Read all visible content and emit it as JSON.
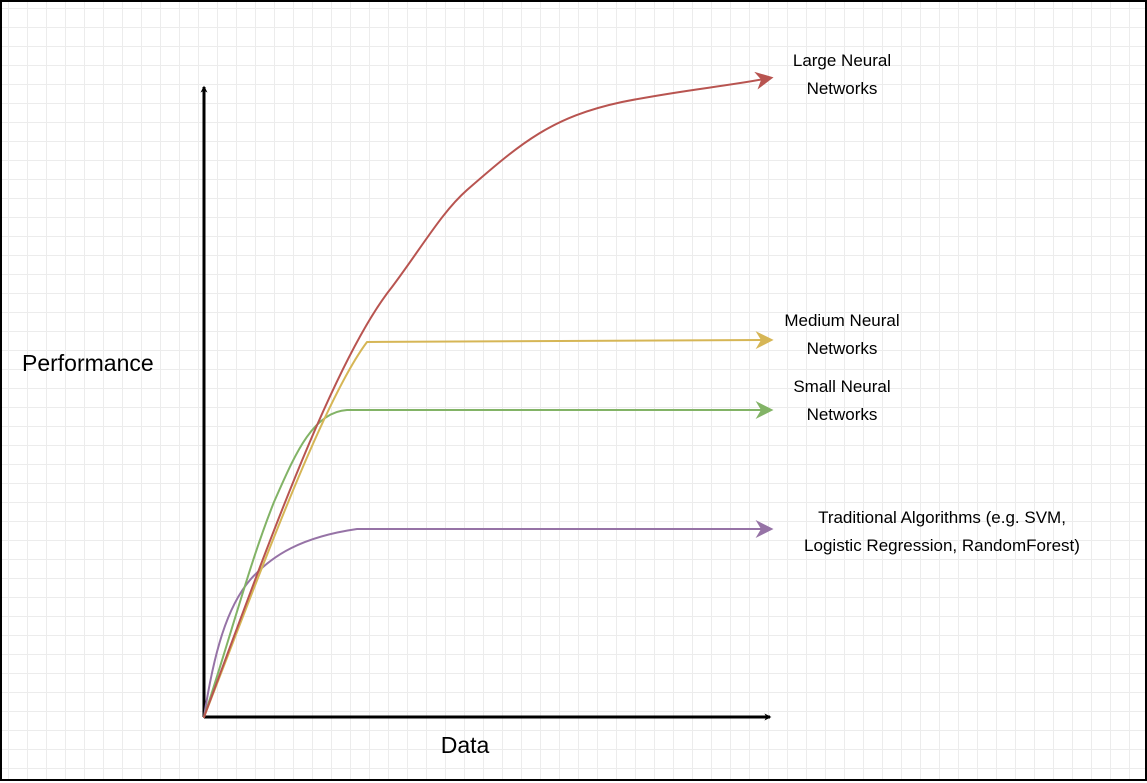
{
  "axes": {
    "x_label": "Data",
    "y_label": "Performance"
  },
  "curves": [
    {
      "id": "large",
      "color": "#b85450",
      "label_lines": [
        "Large Neural",
        "Networks"
      ]
    },
    {
      "id": "medium",
      "color": "#d6b656",
      "label_lines": [
        "Medium Neural",
        "Networks"
      ]
    },
    {
      "id": "small",
      "color": "#82b366",
      "label_lines": [
        "Small Neural",
        "Networks"
      ]
    },
    {
      "id": "traditional",
      "color": "#9673a6",
      "label_lines": [
        "Traditional Algorithms (e.g. SVM,",
        "Logistic Regression, RandomForest)"
      ]
    }
  ]
}
